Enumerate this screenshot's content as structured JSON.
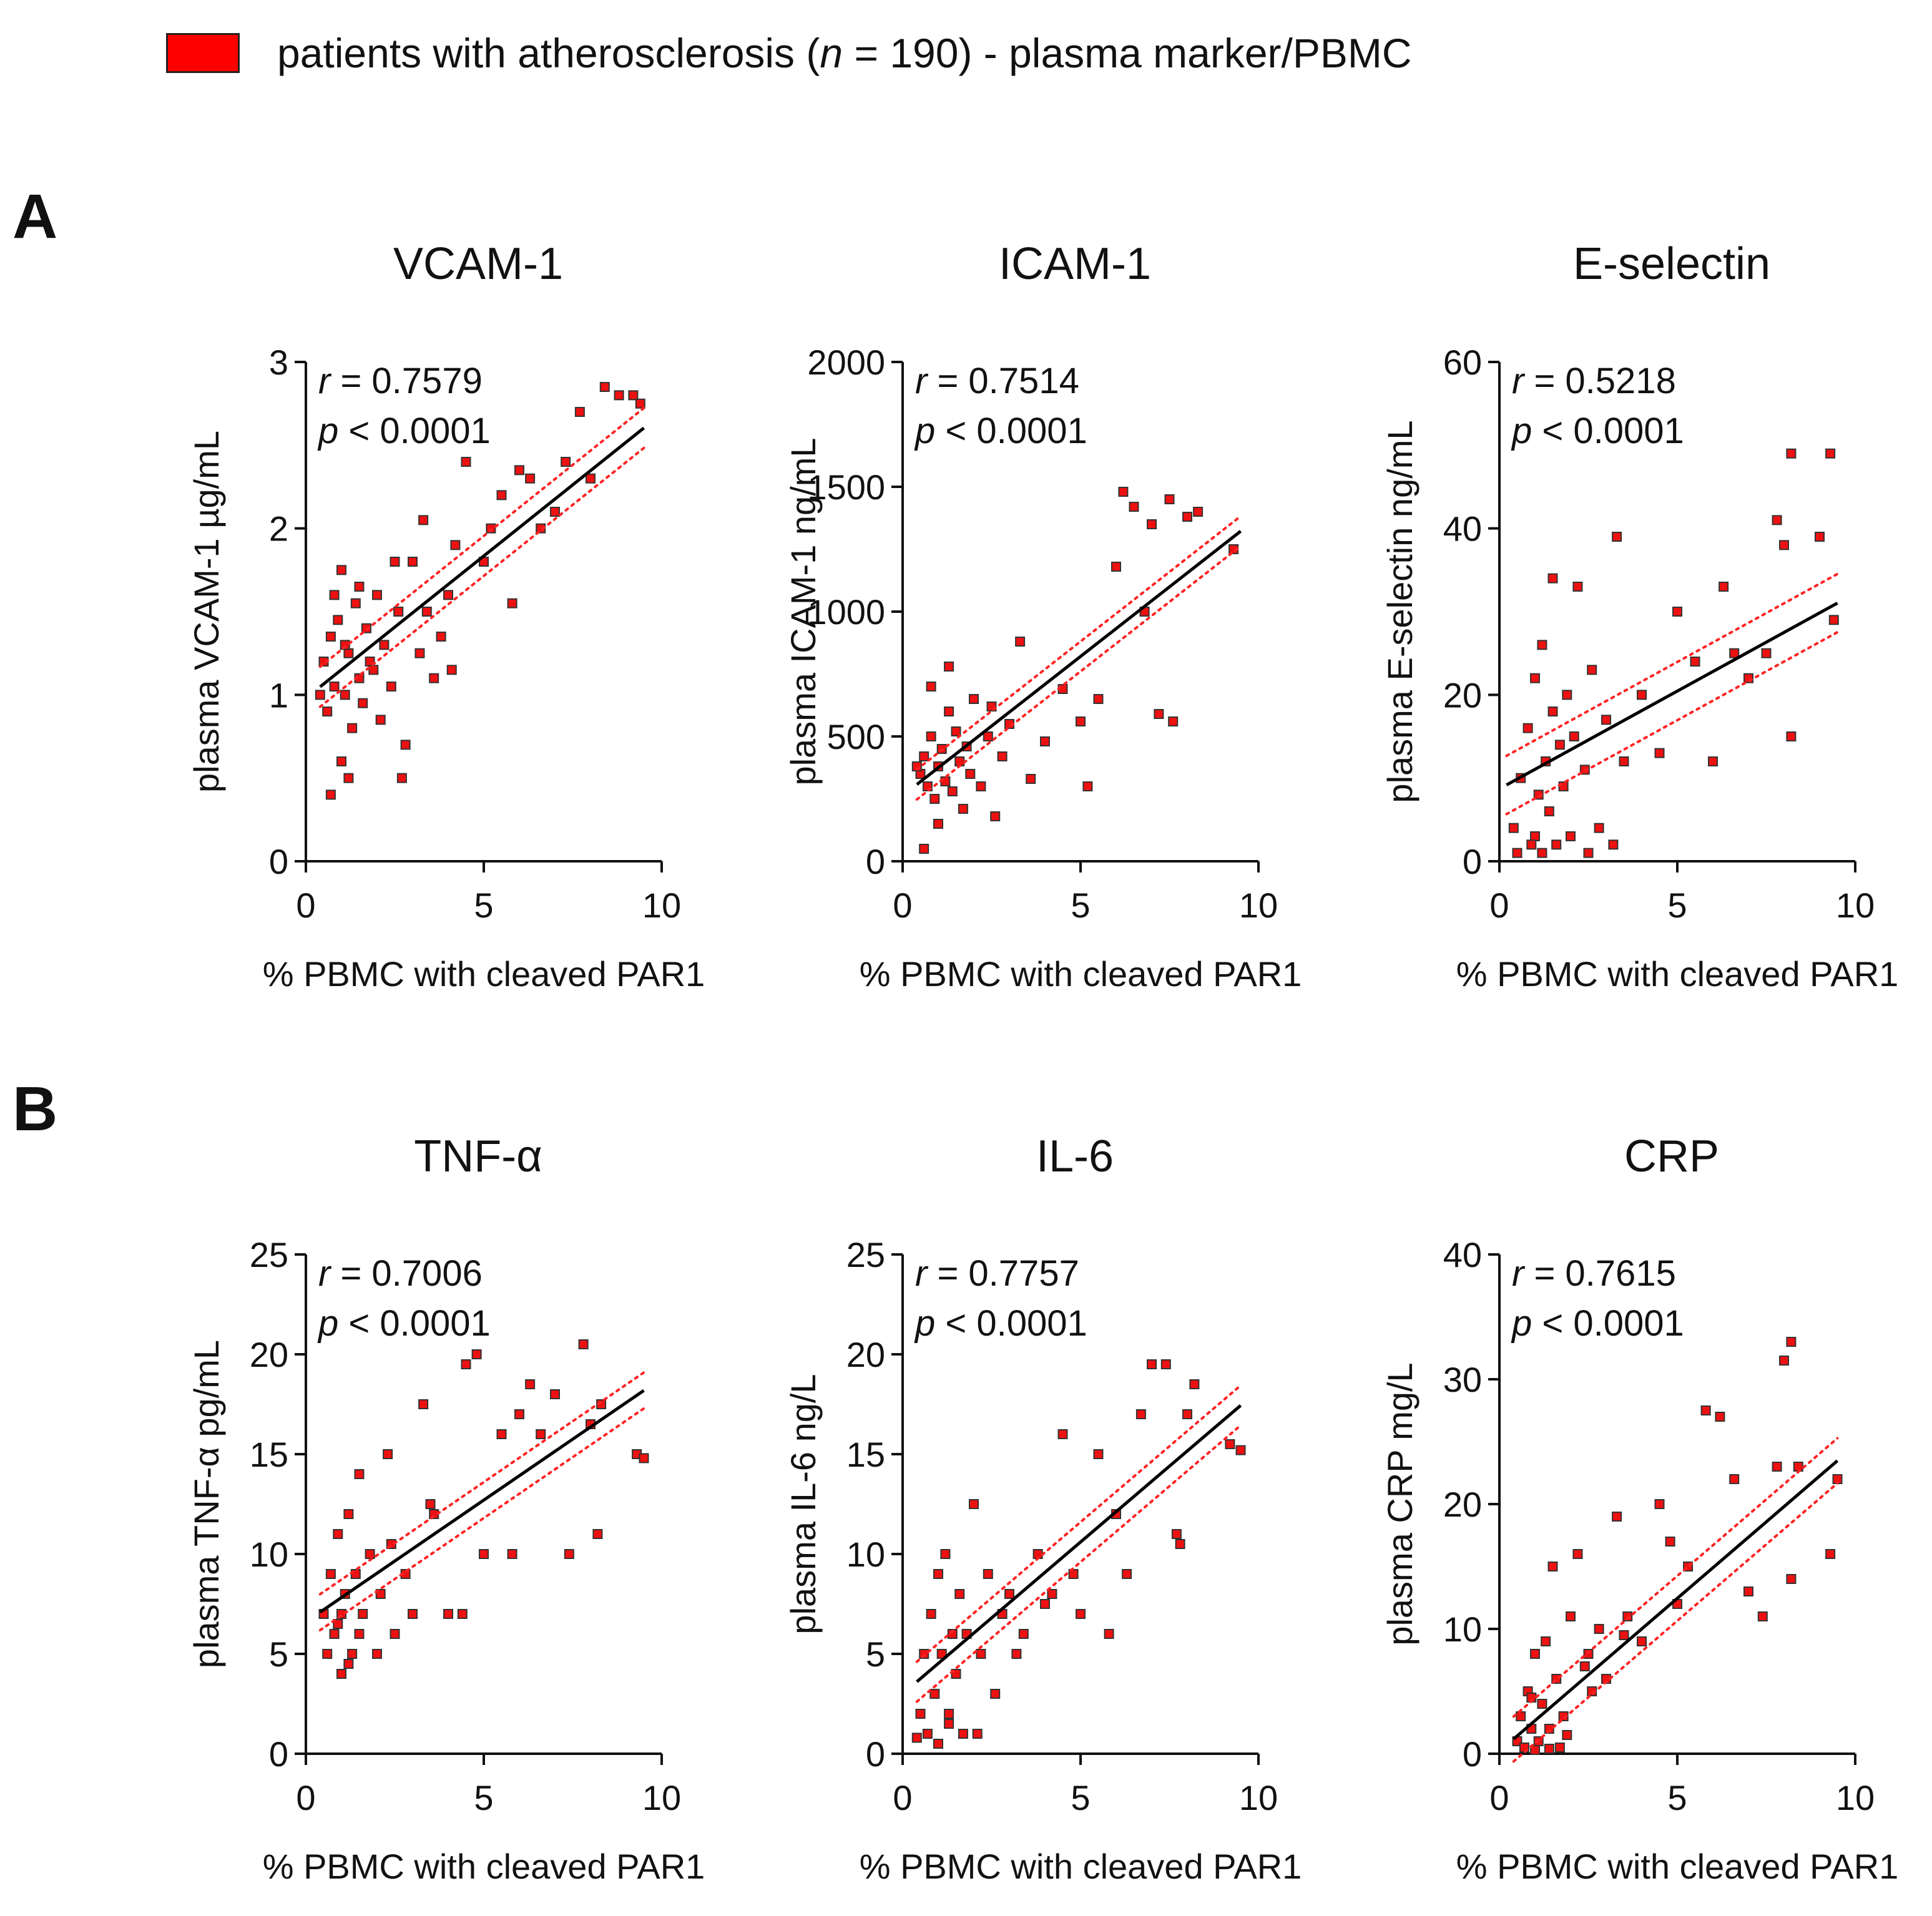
{
  "legend": {
    "color": "#ff0000",
    "label_prefix": "patients with atherosclerosis (",
    "label_n": "n",
    "label_suffix": " = 190) - plasma marker/PBMC"
  },
  "panels": {
    "a": "A",
    "b": "B"
  },
  "chart_data": [
    {
      "type": "scatter",
      "title": "VCAM-1",
      "ylabel": "plasma VCAM-1 µg/mL",
      "xlabel": "% PBMC with cleaved PAR1",
      "xlim": [
        0,
        10
      ],
      "ylim": [
        0,
        3
      ],
      "xticks": [
        0,
        5,
        10
      ],
      "yticks": [
        0,
        1,
        2,
        3
      ],
      "r_label": "r",
      "r_value": " = 0.7579",
      "p_label": "p",
      "p_value": " < 0.0001",
      "regression": {
        "slope": 0.1709,
        "intercept": 0.98,
        "x_range": [
          0.4,
          9.5
        ]
      },
      "ci_offset": 0.12,
      "points": [
        [
          0.5,
          1.2
        ],
        [
          0.6,
          0.9
        ],
        [
          0.7,
          1.35
        ],
        [
          0.8,
          1.05
        ],
        [
          0.9,
          1.45
        ],
        [
          1.0,
          0.6
        ],
        [
          1.0,
          1.75
        ],
        [
          1.1,
          1.0
        ],
        [
          1.2,
          1.25
        ],
        [
          1.3,
          0.8
        ],
        [
          1.4,
          1.55
        ],
        [
          1.5,
          1.1
        ],
        [
          1.6,
          0.95
        ],
        [
          1.7,
          1.4
        ],
        [
          1.8,
          1.2
        ],
        [
          2.0,
          1.6
        ],
        [
          2.1,
          0.85
        ],
        [
          2.2,
          1.3
        ],
        [
          2.4,
          1.05
        ],
        [
          2.6,
          1.5
        ],
        [
          2.8,
          0.7
        ],
        [
          3.0,
          1.8
        ],
        [
          3.2,
          1.25
        ],
        [
          3.4,
          1.5
        ],
        [
          3.6,
          1.1
        ],
        [
          3.8,
          1.35
        ],
        [
          4.0,
          1.6
        ],
        [
          4.2,
          1.9
        ],
        [
          4.5,
          2.4
        ],
        [
          5.0,
          1.8
        ],
        [
          5.2,
          2.0
        ],
        [
          5.5,
          2.2
        ],
        [
          5.8,
          1.55
        ],
        [
          6.0,
          2.35
        ],
        [
          6.3,
          2.3
        ],
        [
          6.6,
          2.0
        ],
        [
          7.0,
          2.1
        ],
        [
          7.3,
          2.4
        ],
        [
          7.7,
          2.7
        ],
        [
          8.0,
          2.3
        ],
        [
          8.4,
          2.85
        ],
        [
          8.8,
          2.8
        ],
        [
          9.2,
          2.8
        ],
        [
          9.4,
          2.75
        ],
        [
          0.4,
          1.0
        ],
        [
          0.8,
          1.6
        ],
        [
          1.2,
          0.5
        ],
        [
          1.5,
          1.65
        ],
        [
          2.5,
          1.8
        ],
        [
          3.3,
          2.05
        ],
        [
          0.7,
          0.4
        ],
        [
          1.1,
          1.3
        ],
        [
          1.9,
          1.15
        ],
        [
          2.7,
          0.5
        ],
        [
          4.1,
          1.15
        ]
      ]
    },
    {
      "type": "scatter",
      "title": "ICAM-1",
      "ylabel": "plasma ICAM-1 ng/mL",
      "xlabel": "% PBMC with cleaved PAR1",
      "xlim": [
        0,
        10
      ],
      "ylim": [
        0,
        2000
      ],
      "xticks": [
        0,
        5,
        10
      ],
      "yticks": [
        0,
        500,
        1000,
        1500,
        2000
      ],
      "r_label": "r",
      "r_value": " = 0.7514",
      "p_label": "p",
      "p_value": " < 0.0001",
      "regression": {
        "slope": 111.5,
        "intercept": 263,
        "x_range": [
          0.4,
          9.5
        ]
      },
      "ci_offset": 60,
      "points": [
        [
          0.5,
          350
        ],
        [
          0.6,
          420
        ],
        [
          0.7,
          300
        ],
        [
          0.8,
          500
        ],
        [
          0.9,
          250
        ],
        [
          1.0,
          380
        ],
        [
          1.1,
          450
        ],
        [
          1.2,
          320
        ],
        [
          1.3,
          600
        ],
        [
          1.4,
          280
        ],
        [
          1.5,
          520
        ],
        [
          1.6,
          400
        ],
        [
          1.7,
          210
        ],
        [
          1.8,
          460
        ],
        [
          1.9,
          350
        ],
        [
          2.0,
          650
        ],
        [
          2.2,
          300
        ],
        [
          2.4,
          500
        ],
        [
          2.6,
          180
        ],
        [
          2.8,
          420
        ],
        [
          3.0,
          550
        ],
        [
          3.3,
          880
        ],
        [
          3.6,
          330
        ],
        [
          4.0,
          480
        ],
        [
          4.5,
          690
        ],
        [
          5.0,
          560
        ],
        [
          5.5,
          650
        ],
        [
          6.0,
          1180
        ],
        [
          6.2,
          1480
        ],
        [
          6.5,
          1420
        ],
        [
          6.8,
          1000
        ],
        [
          7.0,
          1350
        ],
        [
          7.5,
          1450
        ],
        [
          8.0,
          1380
        ],
        [
          8.3,
          1400
        ],
        [
          9.3,
          1250
        ],
        [
          7.2,
          590
        ],
        [
          7.6,
          560
        ],
        [
          0.6,
          50
        ],
        [
          1.0,
          150
        ],
        [
          1.3,
          780
        ],
        [
          2.5,
          620
        ],
        [
          5.2,
          300
        ],
        [
          0.4,
          380
        ],
        [
          0.8,
          700
        ]
      ]
    },
    {
      "type": "scatter",
      "title": "E-selectin",
      "ylabel": "plasma E-selectin ng/mL",
      "xlabel": "% PBMC with cleaved PAR1",
      "xlim": [
        0,
        10
      ],
      "ylim": [
        0,
        60
      ],
      "xticks": [
        0,
        5,
        10
      ],
      "yticks": [
        0,
        20,
        40,
        60
      ],
      "r_label": "r",
      "r_value": " = 0.5218",
      "p_label": "p",
      "p_value": " < 0.0001",
      "regression": {
        "slope": 2.35,
        "intercept": 8.7,
        "x_range": [
          0.2,
          9.5
        ]
      },
      "ci_offset": 3.5,
      "points": [
        [
          0.4,
          4
        ],
        [
          0.6,
          10
        ],
        [
          0.8,
          16
        ],
        [
          1.0,
          3
        ],
        [
          1.0,
          22
        ],
        [
          1.1,
          8
        ],
        [
          1.2,
          26
        ],
        [
          1.3,
          12
        ],
        [
          1.4,
          6
        ],
        [
          1.5,
          18
        ],
        [
          1.5,
          34
        ],
        [
          1.6,
          2
        ],
        [
          1.7,
          14
        ],
        [
          1.8,
          9
        ],
        [
          1.9,
          20
        ],
        [
          2.0,
          3
        ],
        [
          2.1,
          15
        ],
        [
          2.2,
          33
        ],
        [
          2.4,
          11
        ],
        [
          2.6,
          23
        ],
        [
          2.8,
          4
        ],
        [
          3.0,
          17
        ],
        [
          3.3,
          39
        ],
        [
          3.5,
          12
        ],
        [
          4.0,
          20
        ],
        [
          4.5,
          13
        ],
        [
          5.0,
          30
        ],
        [
          5.5,
          24
        ],
        [
          6.0,
          12
        ],
        [
          6.3,
          33
        ],
        [
          6.6,
          25
        ],
        [
          7.0,
          22
        ],
        [
          7.5,
          25
        ],
        [
          7.8,
          41
        ],
        [
          8.0,
          38
        ],
        [
          8.2,
          15
        ],
        [
          8.2,
          49
        ],
        [
          9.0,
          39
        ],
        [
          9.3,
          49
        ],
        [
          9.4,
          29
        ],
        [
          0.5,
          1
        ],
        [
          0.9,
          2
        ],
        [
          1.2,
          1
        ],
        [
          2.5,
          1
        ],
        [
          3.2,
          2
        ]
      ]
    },
    {
      "type": "scatter",
      "title": "TNF-α",
      "ylabel": "plasma TNF-α pg/mL",
      "xlabel": "% PBMC with cleaved PAR1",
      "xlim": [
        0,
        10
      ],
      "ylim": [
        0,
        25
      ],
      "xticks": [
        0,
        5,
        10
      ],
      "yticks": [
        0,
        5,
        10,
        15,
        20,
        25
      ],
      "r_label": "r",
      "r_value": " = 0.7006",
      "p_label": "p",
      "p_value": " < 0.0001",
      "regression": {
        "slope": 1.22,
        "intercept": 6.6,
        "x_range": [
          0.4,
          9.5
        ]
      },
      "ci_offset": 0.9,
      "points": [
        [
          0.5,
          7
        ],
        [
          0.6,
          5
        ],
        [
          0.7,
          9
        ],
        [
          0.8,
          6
        ],
        [
          0.9,
          11
        ],
        [
          1.0,
          4
        ],
        [
          1.0,
          7
        ],
        [
          1.1,
          8
        ],
        [
          1.2,
          12
        ],
        [
          1.3,
          5
        ],
        [
          1.4,
          9
        ],
        [
          1.5,
          6
        ],
        [
          1.5,
          14
        ],
        [
          1.6,
          7
        ],
        [
          1.8,
          10
        ],
        [
          2.0,
          5
        ],
        [
          2.1,
          8
        ],
        [
          2.3,
          15
        ],
        [
          2.5,
          6
        ],
        [
          2.8,
          9
        ],
        [
          3.0,
          7
        ],
        [
          3.3,
          17.5
        ],
        [
          3.6,
          12
        ],
        [
          4.0,
          7
        ],
        [
          4.5,
          19.5
        ],
        [
          4.8,
          20
        ],
        [
          5.0,
          10
        ],
        [
          5.5,
          16
        ],
        [
          5.8,
          10
        ],
        [
          6.0,
          17
        ],
        [
          6.3,
          18.5
        ],
        [
          6.6,
          16
        ],
        [
          7.0,
          18
        ],
        [
          7.4,
          10
        ],
        [
          7.8,
          20.5
        ],
        [
          8.0,
          16.5
        ],
        [
          8.3,
          17.5
        ],
        [
          9.3,
          15
        ],
        [
          9.5,
          14.8
        ],
        [
          8.2,
          11
        ],
        [
          1.2,
          4.5
        ],
        [
          0.9,
          6.5
        ],
        [
          2.4,
          10.5
        ],
        [
          3.5,
          12.5
        ],
        [
          4.4,
          7
        ]
      ]
    },
    {
      "type": "scatter",
      "title": "IL-6",
      "ylabel": "plasma IL-6 ng/L",
      "xlabel": "% PBMC with cleaved PAR1",
      "xlim": [
        0,
        10
      ],
      "ylim": [
        0,
        25
      ],
      "xticks": [
        0,
        5,
        10
      ],
      "yticks": [
        0,
        5,
        10,
        15,
        20,
        25
      ],
      "r_label": "r",
      "r_value": " = 0.7757",
      "p_label": "p",
      "p_value": " < 0.0001",
      "regression": {
        "slope": 1.52,
        "intercept": 3.0,
        "x_range": [
          0.4,
          9.5
        ]
      },
      "ci_offset": 1.0,
      "points": [
        [
          0.5,
          2
        ],
        [
          0.6,
          5
        ],
        [
          0.7,
          1
        ],
        [
          0.8,
          7
        ],
        [
          0.9,
          3
        ],
        [
          1.0,
          9
        ],
        [
          1.1,
          5
        ],
        [
          1.2,
          10
        ],
        [
          1.3,
          2
        ],
        [
          1.4,
          6
        ],
        [
          1.5,
          4
        ],
        [
          1.6,
          8
        ],
        [
          1.7,
          1
        ],
        [
          1.8,
          6
        ],
        [
          2.0,
          12.5
        ],
        [
          2.2,
          5
        ],
        [
          2.4,
          9
        ],
        [
          2.6,
          3
        ],
        [
          2.8,
          7
        ],
        [
          3.0,
          8
        ],
        [
          3.4,
          6
        ],
        [
          3.8,
          10
        ],
        [
          4.0,
          7.5
        ],
        [
          4.5,
          16
        ],
        [
          4.8,
          9
        ],
        [
          5.0,
          7
        ],
        [
          5.5,
          15
        ],
        [
          6.0,
          12
        ],
        [
          6.3,
          9
        ],
        [
          6.7,
          17
        ],
        [
          7.0,
          19.5
        ],
        [
          7.4,
          19.5
        ],
        [
          7.7,
          11
        ],
        [
          8.0,
          17
        ],
        [
          8.2,
          18.5
        ],
        [
          9.2,
          15.5
        ],
        [
          9.5,
          15.2
        ],
        [
          7.8,
          10.5
        ],
        [
          1.0,
          0.5
        ],
        [
          1.3,
          1.5
        ],
        [
          2.1,
          1
        ],
        [
          0.4,
          0.8
        ],
        [
          3.2,
          5
        ],
        [
          4.2,
          8
        ],
        [
          5.8,
          6
        ]
      ]
    },
    {
      "type": "scatter",
      "title": "CRP",
      "ylabel": "plasma CRP mg/L",
      "xlabel": "% PBMC with cleaved PAR1",
      "xlim": [
        0,
        10
      ],
      "ylim": [
        0,
        40
      ],
      "xticks": [
        0,
        5,
        10
      ],
      "yticks": [
        0,
        10,
        20,
        30,
        40
      ],
      "r_label": "r",
      "r_value": " = 0.7615",
      "p_label": "p",
      "p_value": " < 0.0001",
      "regression": {
        "slope": 2.45,
        "intercept": 0.2,
        "x_range": [
          0.4,
          9.5
        ]
      },
      "ci_offset": 1.8,
      "points": [
        [
          0.5,
          1
        ],
        [
          0.6,
          3
        ],
        [
          0.7,
          0.5
        ],
        [
          0.8,
          5
        ],
        [
          0.9,
          2
        ],
        [
          1.0,
          8
        ],
        [
          1.1,
          1
        ],
        [
          1.2,
          4
        ],
        [
          1.3,
          9
        ],
        [
          1.4,
          2
        ],
        [
          1.5,
          15
        ],
        [
          1.6,
          6
        ],
        [
          1.7,
          0.5
        ],
        [
          1.8,
          3
        ],
        [
          2.0,
          11
        ],
        [
          2.2,
          16
        ],
        [
          2.4,
          7
        ],
        [
          2.6,
          5
        ],
        [
          2.8,
          10
        ],
        [
          3.0,
          6
        ],
        [
          3.3,
          19
        ],
        [
          3.6,
          11
        ],
        [
          4.0,
          9
        ],
        [
          4.5,
          20
        ],
        [
          5.0,
          12
        ],
        [
          5.3,
          15
        ],
        [
          5.8,
          27.5
        ],
        [
          6.2,
          27
        ],
        [
          6.6,
          22
        ],
        [
          7.0,
          13
        ],
        [
          7.4,
          11
        ],
        [
          7.8,
          23
        ],
        [
          8.0,
          31.5
        ],
        [
          8.2,
          33
        ],
        [
          8.4,
          23
        ],
        [
          9.3,
          16
        ],
        [
          9.5,
          22
        ],
        [
          8.2,
          14
        ],
        [
          1.0,
          0.3
        ],
        [
          1.4,
          0.4
        ],
        [
          0.9,
          4.5
        ],
        [
          1.9,
          1.5
        ],
        [
          2.5,
          8
        ],
        [
          3.5,
          9.5
        ],
        [
          4.8,
          17
        ]
      ]
    }
  ]
}
